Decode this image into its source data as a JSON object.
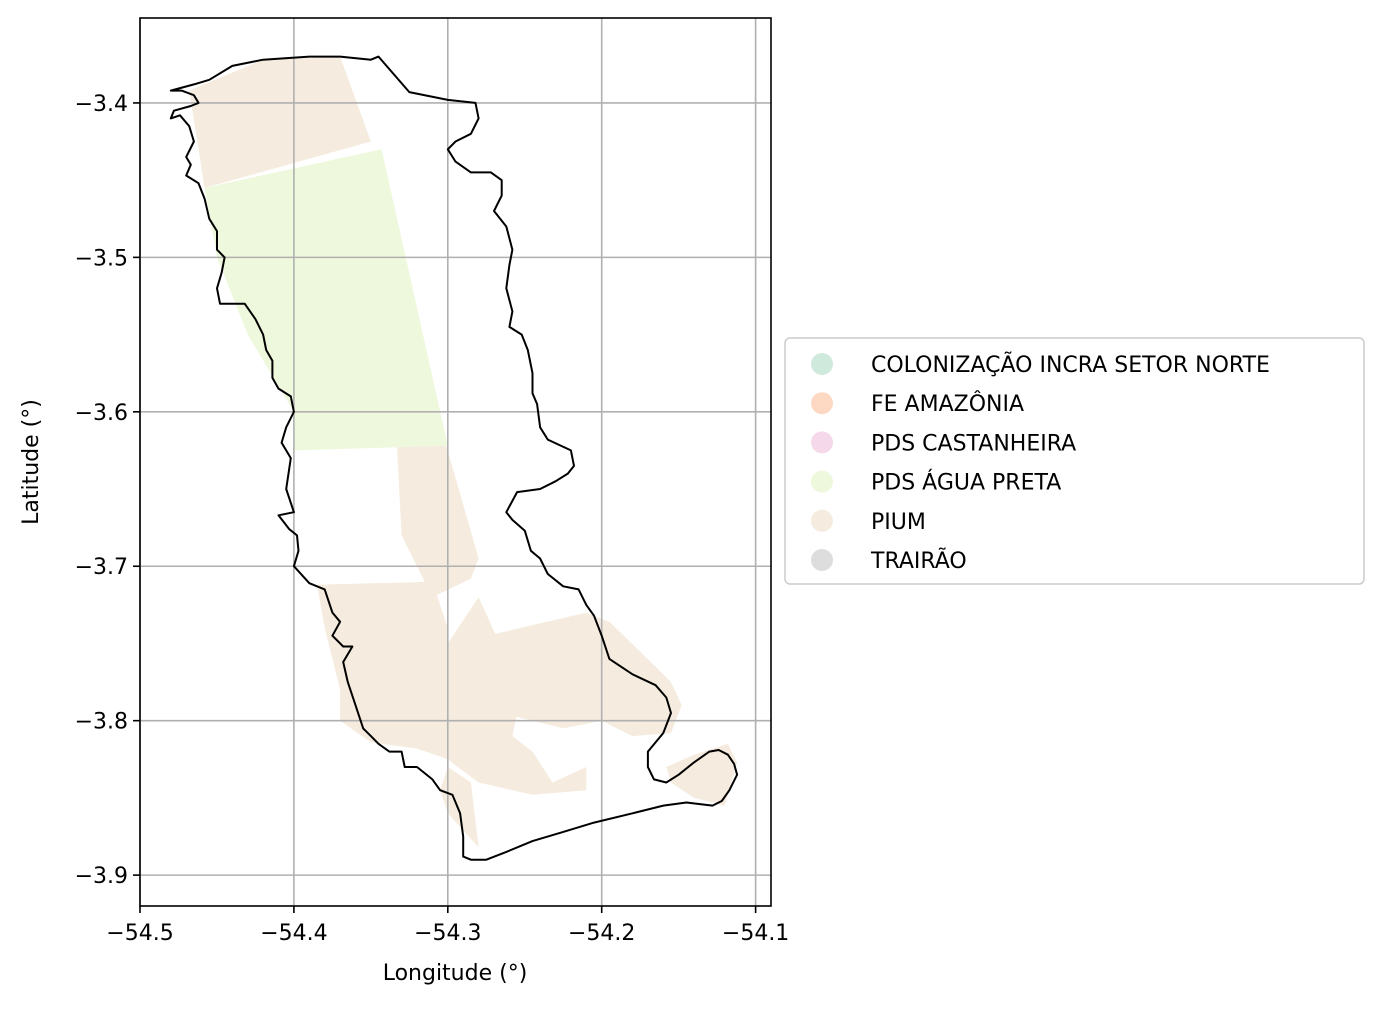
{
  "chart_data": {
    "type": "map",
    "xlabel": "Longitude (°)",
    "ylabel": "Latitude (°)",
    "xlim": [
      -54.5,
      -54.09
    ],
    "ylim": [
      -3.92,
      -3.345
    ],
    "xticks": [
      -54.5,
      -54.4,
      -54.3,
      -54.2,
      -54.1
    ],
    "yticks": [
      -3.4,
      -3.5,
      -3.6,
      -3.7,
      -3.8,
      -3.9
    ],
    "xtick_labels": [
      "−54.5",
      "−54.4",
      "−54.3",
      "−54.2",
      "−54.1"
    ],
    "ytick_labels": [
      "−3.4",
      "−3.5",
      "−3.6",
      "−3.7",
      "−3.8",
      "−3.9"
    ],
    "grid": true,
    "legend_placement": "right, outside axes",
    "legend": [
      {
        "label": "COLONIZAÇÃO INCRA SETOR NORTE",
        "color": "#cfeadc"
      },
      {
        "label": "FE AMAZÔNIA",
        "color": "#fdd9c3"
      },
      {
        "label": "PDS CASTANHEIRA",
        "color": "#f5d8ea"
      },
      {
        "label": "PDS ÁGUA PRETA",
        "color": "#eef8dc"
      },
      {
        "label": "PIUM",
        "color": "#f5ebde"
      },
      {
        "label": "TRAIRÃO",
        "color": "#dddddd"
      }
    ],
    "regions": [
      {
        "name": "PIUM",
        "color": "#f5ebde",
        "coords": [
          [
            -54.468,
            -3.392
          ],
          [
            -54.42,
            -3.372
          ],
          [
            -54.37,
            -3.37
          ],
          [
            -54.35,
            -3.425
          ],
          [
            -54.458,
            -3.455
          ],
          [
            -54.462,
            -3.43
          ]
        ]
      },
      {
        "name": "PDS ÁGUA PRETA",
        "color": "#eef8dc",
        "coords": [
          [
            -54.458,
            -3.455
          ],
          [
            -54.343,
            -3.43
          ],
          [
            -54.3,
            -3.622
          ],
          [
            -54.4,
            -3.625
          ],
          [
            -54.4,
            -3.6
          ],
          [
            -54.43,
            -3.55
          ],
          [
            -54.45,
            -3.5
          ]
        ]
      },
      {
        "name": "PIUM",
        "color": "#f5ebde",
        "coords": [
          [
            -54.333,
            -3.623
          ],
          [
            -54.301,
            -3.622
          ],
          [
            -54.28,
            -3.695
          ],
          [
            -54.285,
            -3.708
          ],
          [
            -54.31,
            -3.72
          ],
          [
            -54.33,
            -3.68
          ]
        ]
      },
      {
        "name": "PIUM",
        "color": "#f5ebde",
        "coords": [
          [
            -54.385,
            -3.712
          ],
          [
            -54.31,
            -3.71
          ],
          [
            -54.3,
            -3.74
          ],
          [
            -54.3,
            -3.75
          ],
          [
            -54.28,
            -3.72
          ],
          [
            -54.27,
            -3.742
          ],
          [
            -54.262,
            -3.76
          ],
          [
            -54.265,
            -3.78
          ],
          [
            -54.255,
            -3.795
          ],
          [
            -54.258,
            -3.81
          ],
          [
            -54.245,
            -3.82
          ],
          [
            -54.232,
            -3.84
          ],
          [
            -54.21,
            -3.83
          ],
          [
            -54.21,
            -3.845
          ],
          [
            -54.245,
            -3.848
          ],
          [
            -54.28,
            -3.84
          ],
          [
            -54.3,
            -3.825
          ],
          [
            -54.32,
            -3.818
          ],
          [
            -54.35,
            -3.814
          ],
          [
            -54.37,
            -3.8
          ],
          [
            -54.37,
            -3.78
          ],
          [
            -54.375,
            -3.76
          ],
          [
            -54.38,
            -3.74
          ]
        ]
      },
      {
        "name": "PIUM",
        "color": "#f5ebde",
        "coords": [
          [
            -54.27,
            -3.744
          ],
          [
            -54.21,
            -3.73
          ],
          [
            -54.195,
            -3.736
          ],
          [
            -54.165,
            -3.765
          ],
          [
            -54.155,
            -3.775
          ],
          [
            -54.148,
            -3.79
          ],
          [
            -54.155,
            -3.808
          ],
          [
            -54.18,
            -3.81
          ],
          [
            -54.2,
            -3.8
          ],
          [
            -54.225,
            -3.805
          ],
          [
            -54.245,
            -3.8
          ],
          [
            -54.265,
            -3.795
          ],
          [
            -54.27,
            -3.78
          ]
        ]
      },
      {
        "name": "PIUM",
        "color": "#f5ebde",
        "coords": [
          [
            -54.285,
            -3.84
          ],
          [
            -54.3,
            -3.83
          ],
          [
            -54.305,
            -3.845
          ],
          [
            -54.3,
            -3.86
          ],
          [
            -54.28,
            -3.882
          ]
        ]
      },
      {
        "name": "PIUM",
        "color": "#f5ebde",
        "coords": [
          [
            -54.14,
            -3.822
          ],
          [
            -54.118,
            -3.815
          ],
          [
            -54.112,
            -3.827
          ],
          [
            -54.12,
            -3.855
          ],
          [
            -54.14,
            -3.85
          ],
          [
            -54.155,
            -3.84
          ],
          [
            -54.158,
            -3.83
          ]
        ]
      }
    ],
    "boundary": [
      [
        -54.48,
        -3.392
      ],
      [
        -54.473,
        -3.392
      ],
      [
        -54.465,
        -3.395
      ],
      [
        -54.462,
        -3.4
      ],
      [
        -54.467,
        -3.402
      ],
      [
        -54.478,
        -3.405
      ],
      [
        -54.48,
        -3.41
      ],
      [
        -54.474,
        -3.408
      ],
      [
        -54.468,
        -3.415
      ],
      [
        -54.465,
        -3.425
      ],
      [
        -54.47,
        -3.435
      ],
      [
        -54.467,
        -3.44
      ],
      [
        -54.47,
        -3.447
      ],
      [
        -54.462,
        -3.452
      ],
      [
        -54.458,
        -3.462
      ],
      [
        -54.455,
        -3.475
      ],
      [
        -54.45,
        -3.483
      ],
      [
        -54.45,
        -3.495
      ],
      [
        -54.445,
        -3.5
      ],
      [
        -54.447,
        -3.51
      ],
      [
        -54.45,
        -3.52
      ],
      [
        -54.448,
        -3.53
      ],
      [
        -54.44,
        -3.53
      ],
      [
        -54.432,
        -3.53
      ],
      [
        -54.425,
        -3.54
      ],
      [
        -54.42,
        -3.55
      ],
      [
        -54.418,
        -3.56
      ],
      [
        -54.414,
        -3.567
      ],
      [
        -54.414,
        -3.578
      ],
      [
        -54.41,
        -3.585
      ],
      [
        -54.402,
        -3.59
      ],
      [
        -54.4,
        -3.6
      ],
      [
        -54.405,
        -3.61
      ],
      [
        -54.408,
        -3.62
      ],
      [
        -54.402,
        -3.63
      ],
      [
        -54.405,
        -3.65
      ],
      [
        -54.4,
        -3.665
      ],
      [
        -54.41,
        -3.667
      ],
      [
        -54.403,
        -3.676
      ],
      [
        -54.398,
        -3.68
      ],
      [
        -54.397,
        -3.69
      ],
      [
        -54.4,
        -3.7
      ],
      [
        -54.39,
        -3.711
      ],
      [
        -54.38,
        -3.715
      ],
      [
        -54.375,
        -3.73
      ],
      [
        -54.37,
        -3.736
      ],
      [
        -54.375,
        -3.745
      ],
      [
        -54.368,
        -3.752
      ],
      [
        -54.362,
        -3.752
      ],
      [
        -54.368,
        -3.762
      ],
      [
        -54.365,
        -3.775
      ],
      [
        -54.36,
        -3.79
      ],
      [
        -54.355,
        -3.805
      ],
      [
        -54.35,
        -3.81
      ],
      [
        -54.345,
        -3.815
      ],
      [
        -54.338,
        -3.82
      ],
      [
        -54.33,
        -3.82
      ],
      [
        -54.328,
        -3.83
      ],
      [
        -54.32,
        -3.83
      ],
      [
        -54.31,
        -3.838
      ],
      [
        -54.305,
        -3.845
      ],
      [
        -54.297,
        -3.848
      ],
      [
        -54.292,
        -3.86
      ],
      [
        -54.29,
        -3.875
      ],
      [
        -54.29,
        -3.888
      ],
      [
        -54.285,
        -3.89
      ],
      [
        -54.275,
        -3.89
      ],
      [
        -54.262,
        -3.885
      ],
      [
        -54.245,
        -3.878
      ],
      [
        -54.225,
        -3.872
      ],
      [
        -54.205,
        -3.866
      ],
      [
        -54.18,
        -3.86
      ],
      [
        -54.16,
        -3.855
      ],
      [
        -54.145,
        -3.853
      ],
      [
        -54.128,
        -3.855
      ],
      [
        -54.122,
        -3.852
      ],
      [
        -54.117,
        -3.845
      ],
      [
        -54.112,
        -3.835
      ],
      [
        -54.114,
        -3.828
      ],
      [
        -54.118,
        -3.822
      ],
      [
        -54.124,
        -3.819
      ],
      [
        -54.13,
        -3.82
      ],
      [
        -54.14,
        -3.827
      ],
      [
        -54.15,
        -3.835
      ],
      [
        -54.158,
        -3.84
      ],
      [
        -54.166,
        -3.838
      ],
      [
        -54.17,
        -3.83
      ],
      [
        -54.17,
        -3.82
      ],
      [
        -54.16,
        -3.808
      ],
      [
        -54.155,
        -3.795
      ],
      [
        -54.158,
        -3.785
      ],
      [
        -54.165,
        -3.777
      ],
      [
        -54.18,
        -3.77
      ],
      [
        -54.195,
        -3.76
      ],
      [
        -54.2,
        -3.745
      ],
      [
        -54.205,
        -3.732
      ],
      [
        -54.21,
        -3.725
      ],
      [
        -54.215,
        -3.715
      ],
      [
        -54.225,
        -3.713
      ],
      [
        -54.235,
        -3.705
      ],
      [
        -54.24,
        -3.695
      ],
      [
        -54.246,
        -3.69
      ],
      [
        -54.25,
        -3.677
      ],
      [
        -54.258,
        -3.67
      ],
      [
        -54.262,
        -3.665
      ],
      [
        -54.255,
        -3.652
      ],
      [
        -54.24,
        -3.65
      ],
      [
        -54.23,
        -3.645
      ],
      [
        -54.222,
        -3.64
      ],
      [
        -54.218,
        -3.635
      ],
      [
        -54.22,
        -3.625
      ],
      [
        -54.235,
        -3.618
      ],
      [
        -54.24,
        -3.61
      ],
      [
        -54.242,
        -3.595
      ],
      [
        -54.245,
        -3.588
      ],
      [
        -54.245,
        -3.575
      ],
      [
        -54.248,
        -3.56
      ],
      [
        -54.252,
        -3.55
      ],
      [
        -54.26,
        -3.545
      ],
      [
        -54.258,
        -3.535
      ],
      [
        -54.262,
        -3.52
      ],
      [
        -54.26,
        -3.505
      ],
      [
        -54.258,
        -3.495
      ],
      [
        -54.262,
        -3.48
      ],
      [
        -54.27,
        -3.47
      ],
      [
        -54.265,
        -3.46
      ],
      [
        -54.265,
        -3.45
      ],
      [
        -54.272,
        -3.445
      ],
      [
        -54.285,
        -3.445
      ],
      [
        -54.295,
        -3.438
      ],
      [
        -54.3,
        -3.43
      ],
      [
        -54.295,
        -3.425
      ],
      [
        -54.285,
        -3.42
      ],
      [
        -54.28,
        -3.41
      ],
      [
        -54.282,
        -3.4
      ],
      [
        -54.3,
        -3.398
      ],
      [
        -54.325,
        -3.393
      ],
      [
        -54.345,
        -3.37
      ],
      [
        -54.35,
        -3.372
      ],
      [
        -54.37,
        -3.37
      ],
      [
        -54.39,
        -3.37
      ],
      [
        -54.42,
        -3.372
      ],
      [
        -54.44,
        -3.376
      ],
      [
        -54.455,
        -3.385
      ],
      [
        -54.465,
        -3.388
      ]
    ]
  }
}
